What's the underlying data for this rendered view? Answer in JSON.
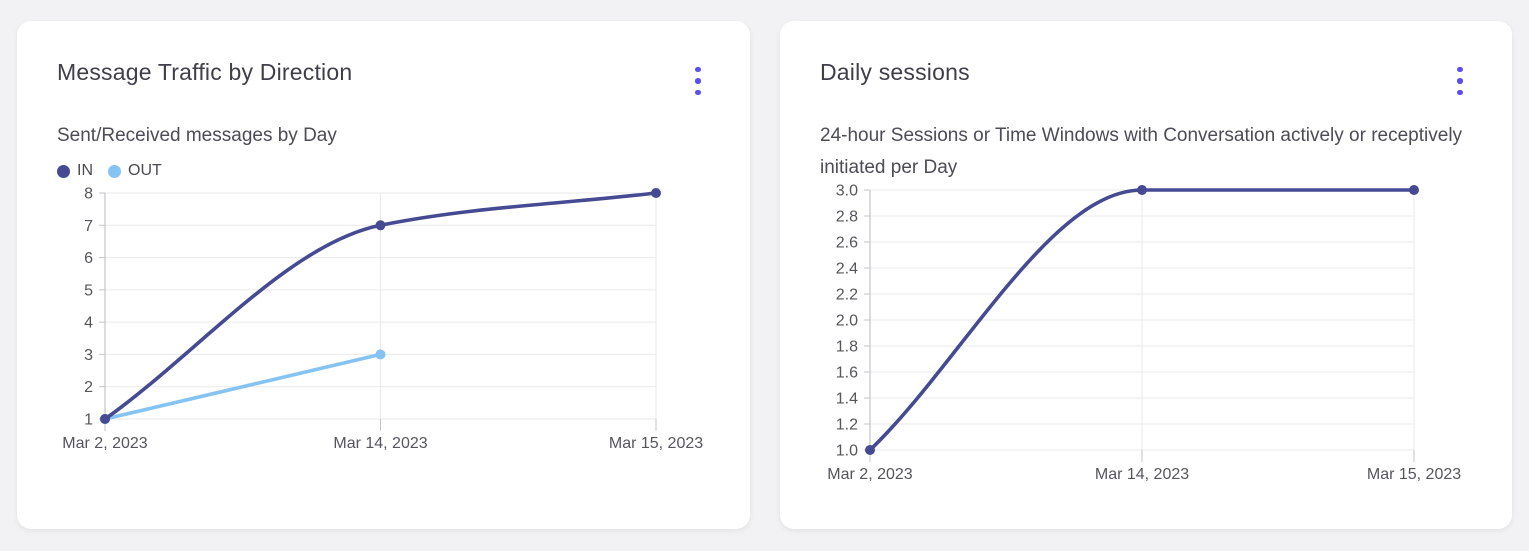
{
  "theme": {
    "accent": "#5A4FF1",
    "page_background": "#F2F2F4",
    "card_background": "#FFFFFF",
    "grid_color": "#EAEAEC",
    "axis_line_color": "#C6C6CA",
    "axis_text_color": "#55555E"
  },
  "cards": [
    {
      "menu_icon": "kebab-vertical"
    },
    {
      "menu_icon": "kebab-vertical"
    }
  ],
  "chart_data": [
    {
      "type": "line",
      "title": "Message Traffic by Direction",
      "subtitle": "Sent/Received messages by Day",
      "x": [
        "Mar 2, 2023",
        "Mar 14, 2023",
        "Mar 15, 2023"
      ],
      "series": [
        {
          "name": "IN",
          "color": "#454A92",
          "values": [
            1,
            7,
            8
          ]
        },
        {
          "name": "OUT",
          "color": "#85C4F2",
          "values": [
            1,
            3,
            null
          ]
        }
      ],
      "ylim": [
        1,
        8
      ],
      "yticks": [
        "1",
        "2",
        "3",
        "4",
        "5",
        "6",
        "7",
        "8"
      ],
      "xlabel": "",
      "ylabel": "",
      "grid": true,
      "smooth": true,
      "legend_position": "top-left"
    },
    {
      "type": "line",
      "title": "Daily sessions",
      "subtitle": "24-hour Sessions or Time Windows with Conversation actively or receptively initiated per Day",
      "x": [
        "Mar 2, 2023",
        "Mar 14, 2023",
        "Mar 15, 2023"
      ],
      "series": [
        {
          "name": "Daily sessions",
          "color": "#454A92",
          "values": [
            1.0,
            3.0,
            3.0
          ]
        }
      ],
      "ylim": [
        1.0,
        3.0
      ],
      "yticks": [
        "1.0",
        "1.2",
        "1.4",
        "1.6",
        "1.8",
        "2.0",
        "2.2",
        "2.4",
        "2.6",
        "2.8",
        "3.0"
      ],
      "xlabel": "",
      "ylabel": "",
      "grid": true,
      "smooth": true,
      "legend_position": "none"
    }
  ]
}
